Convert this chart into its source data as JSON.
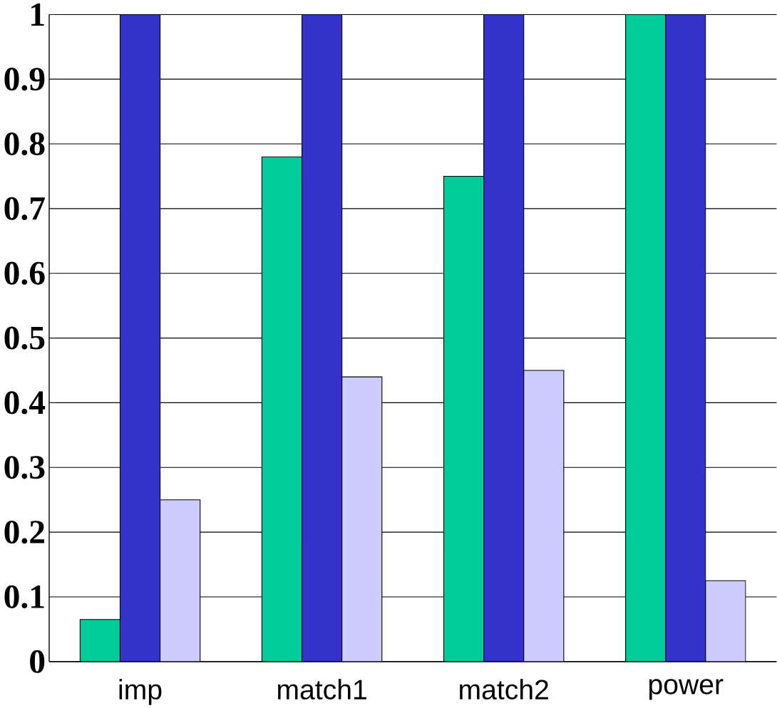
{
  "chart_data": {
    "type": "bar",
    "categories": [
      "imp",
      "match1",
      "match2",
      "power"
    ],
    "series": [
      {
        "color": "#00cc99",
        "values": [
          0.065,
          0.78,
          0.75,
          1.0
        ]
      },
      {
        "color": "#3333cc",
        "values": [
          1.0,
          1.0,
          1.0,
          1.0
        ]
      },
      {
        "color": "#ccccff",
        "values": [
          0.25,
          0.44,
          0.45,
          0.125
        ]
      }
    ],
    "ylim": [
      0,
      1
    ],
    "yticks": [
      0,
      0.1,
      0.2,
      0.3,
      0.4,
      0.5,
      0.6,
      0.7,
      0.8,
      0.9,
      1
    ],
    "grid": "y"
  }
}
